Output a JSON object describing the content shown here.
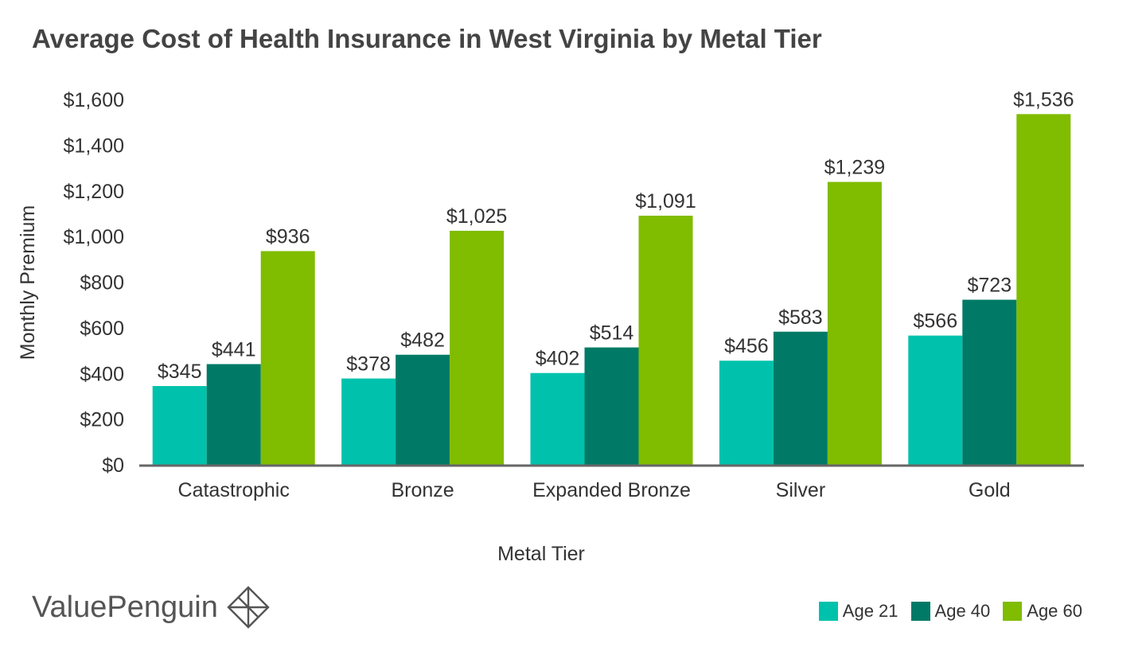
{
  "chart_data": {
    "type": "bar",
    "title": "Average Cost of Health Insurance in West Virginia by Metal Tier",
    "xlabel": "Metal Tier",
    "ylabel": "Monthly Premium",
    "ylim": [
      0,
      1600
    ],
    "yticks": [
      "$0",
      "$200",
      "$400",
      "$600",
      "$800",
      "$1,000",
      "$1,200",
      "$1,400",
      "$1,600"
    ],
    "categories": [
      "Catastrophic",
      "Bronze",
      "Expanded Bronze",
      "Silver",
      "Gold"
    ],
    "series": [
      {
        "name": "Age 21",
        "color": "#00c2ac",
        "values": [
          345,
          378,
          402,
          456,
          566
        ],
        "labels": [
          "$345",
          "$378",
          "$402",
          "$456",
          "$566"
        ]
      },
      {
        "name": "Age 40",
        "color": "#007a66",
        "values": [
          441,
          482,
          514,
          583,
          723
        ],
        "labels": [
          "$441",
          "$482",
          "$514",
          "$583",
          "$723"
        ]
      },
      {
        "name": "Age 60",
        "color": "#80bc00",
        "values": [
          936,
          1025,
          1091,
          1239,
          1536
        ],
        "labels": [
          "$936",
          "$1,025",
          "$1,091",
          "$1,239",
          "$1,536"
        ]
      }
    ],
    "grid": false,
    "legend_position": "bottom-right"
  },
  "brand": {
    "name": "ValuePenguin",
    "icon": "valuepenguin-logo-icon"
  }
}
